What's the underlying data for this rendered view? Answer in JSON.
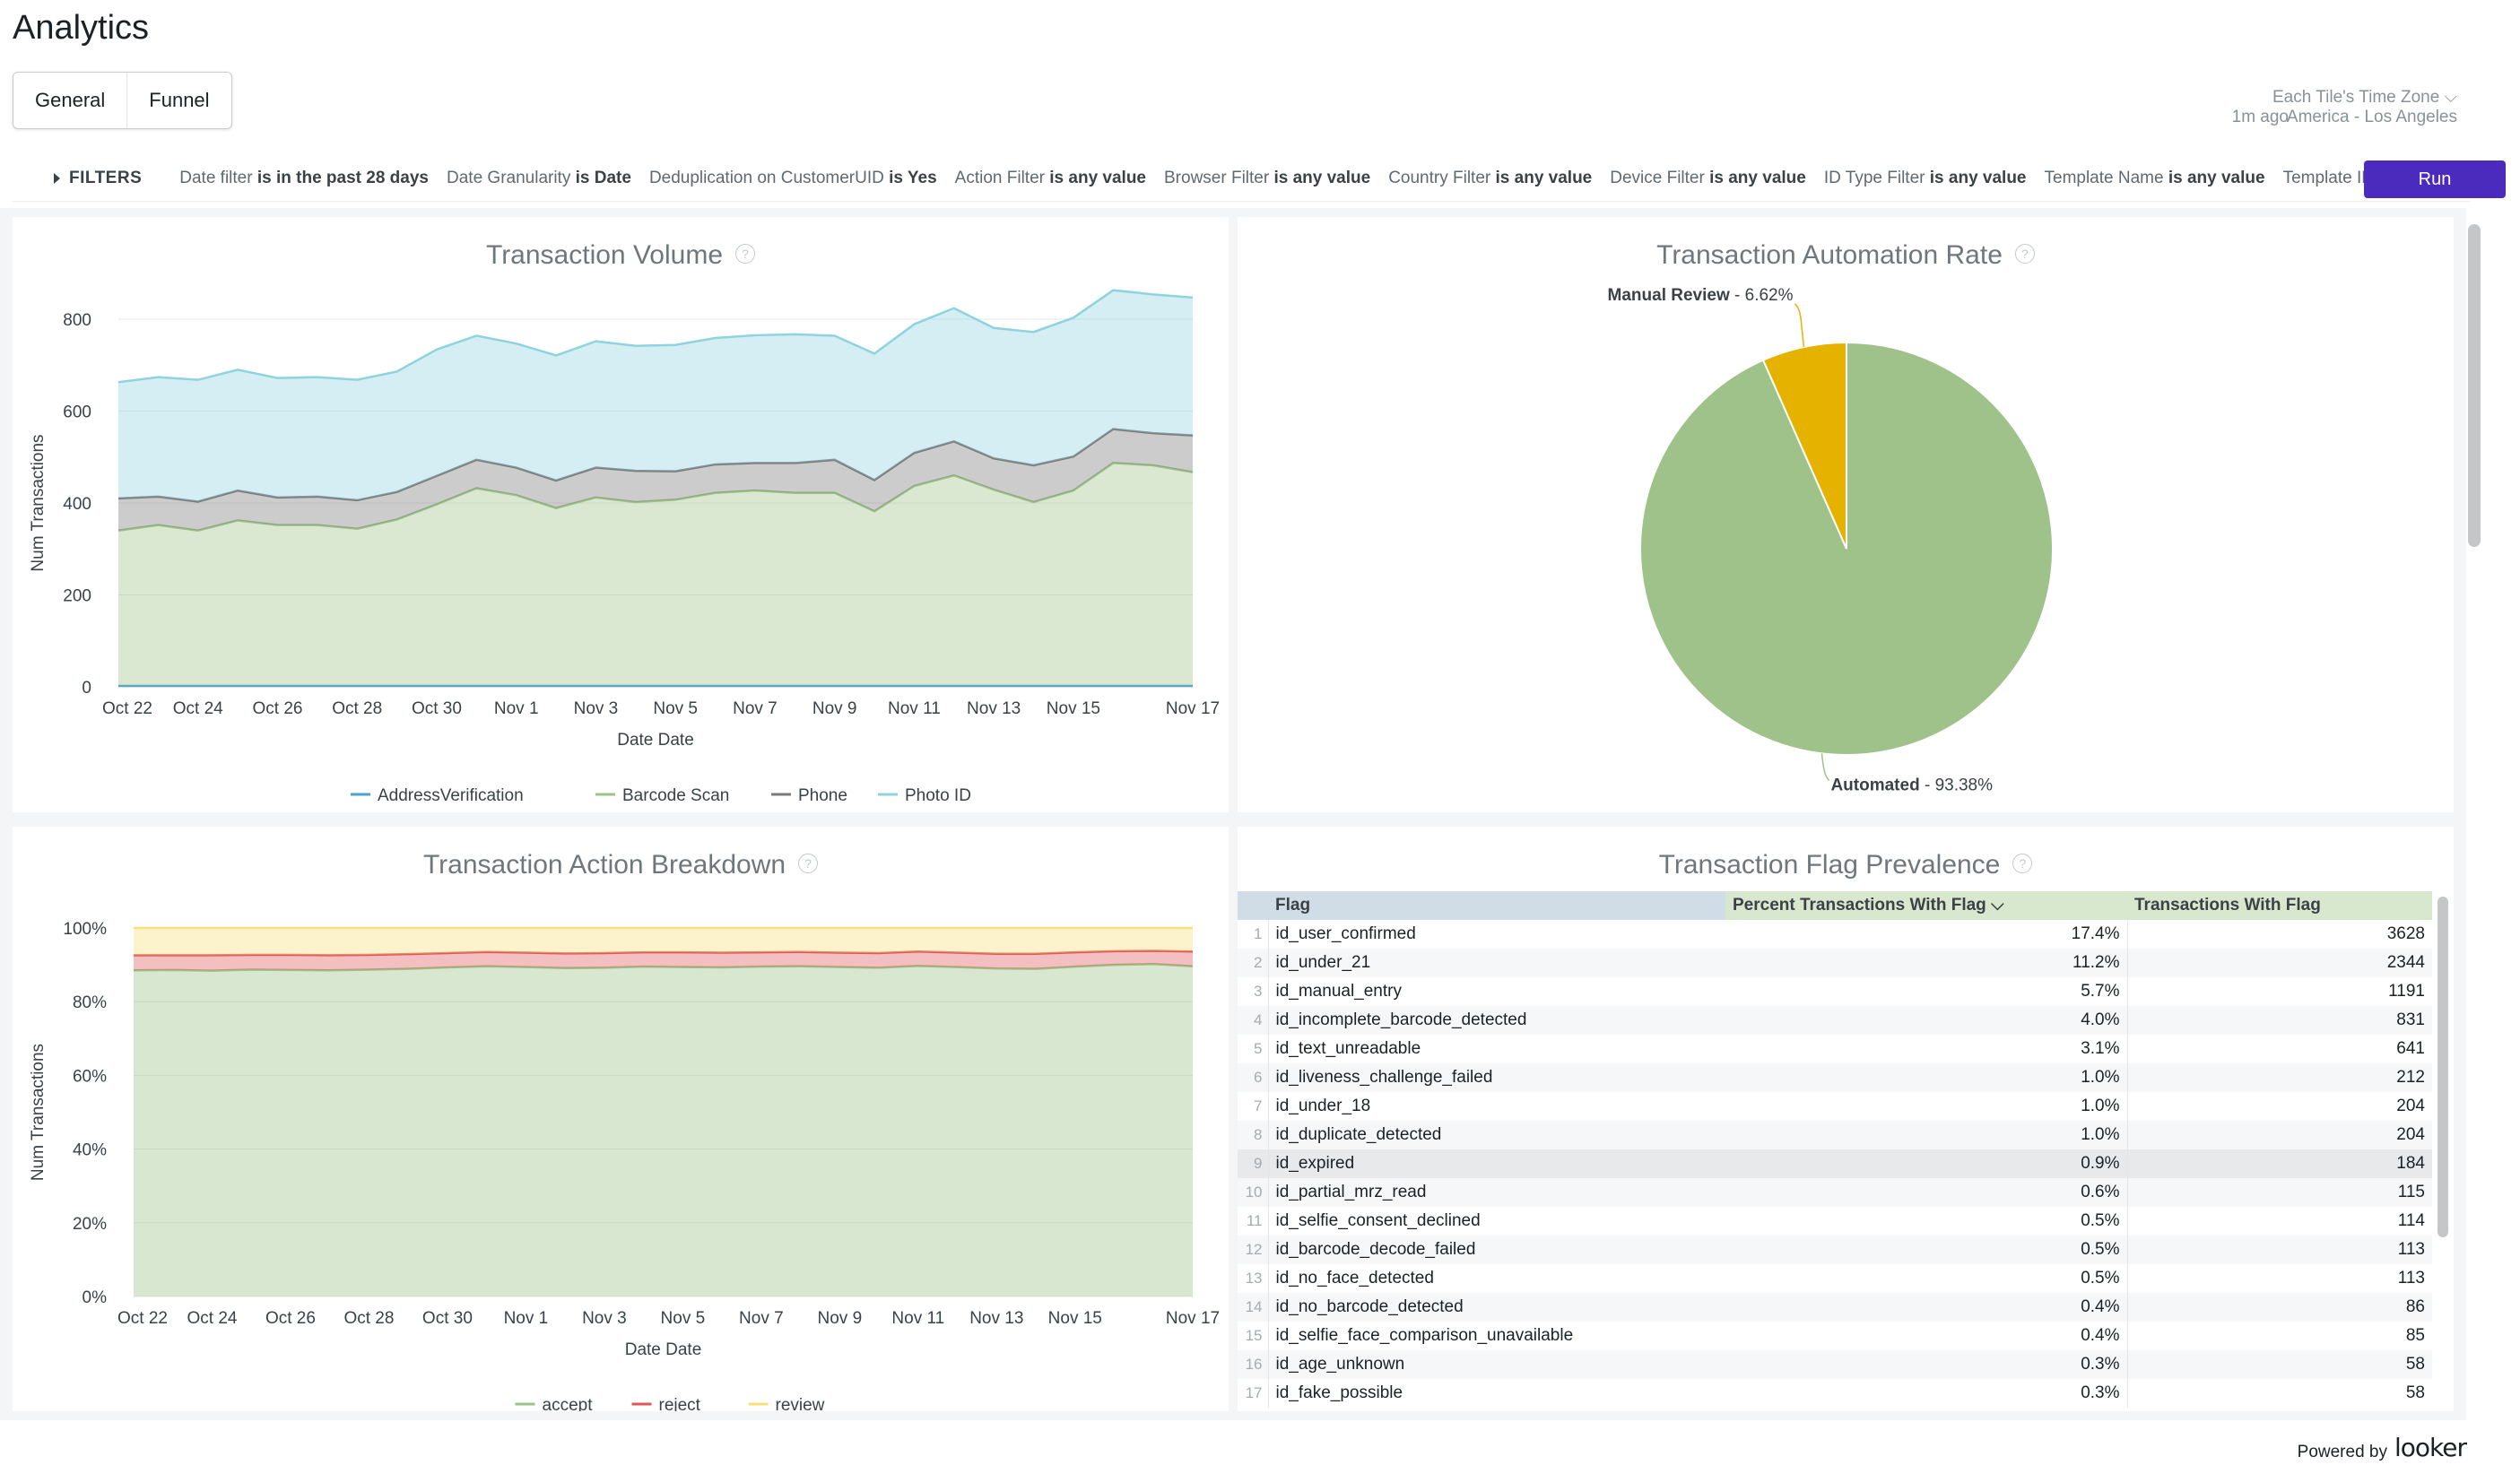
{
  "app": {
    "title": "Analytics"
  },
  "tabs": [
    {
      "label": "General"
    },
    {
      "label": "Funnel"
    }
  ],
  "timezone": {
    "label": "Each Tile's Time Zone",
    "value": "America - Los Angeles",
    "updated": "1m ago"
  },
  "filters": {
    "toggle": "FILTERS",
    "items": [
      {
        "name": "Date filter",
        "value": "is in the past 28 days"
      },
      {
        "name": "Date Granularity",
        "value": "is Date"
      },
      {
        "name": "Deduplication on CustomerUID",
        "value": "is Yes"
      },
      {
        "name": "Action Filter",
        "value": "is any value"
      },
      {
        "name": "Browser Filter",
        "value": "is any value"
      },
      {
        "name": "Country Filter",
        "value": "is any value"
      },
      {
        "name": "Device Filter",
        "value": "is any value"
      },
      {
        "name": "ID Type Filter",
        "value": "is any value"
      },
      {
        "name": "Template Name",
        "value": "is any value"
      },
      {
        "name": "Template ID",
        "value": ""
      }
    ],
    "run_label": "Run"
  },
  "colors": {
    "accent": "#4a2bbd",
    "green": "#9ec28a",
    "gold": "#e6b200",
    "teal": "#8fd3df",
    "gray": "#7a7a7a",
    "red": "#e15759",
    "yellow": "#f8e07a"
  },
  "tiles": {
    "volume": {
      "title": "Transaction Volume"
    },
    "automation": {
      "title": "Transaction Automation Rate"
    },
    "action": {
      "title": "Transaction Action Breakdown"
    },
    "flags": {
      "title": "Transaction Flag Prevalence"
    }
  },
  "chart_data": [
    {
      "type": "area",
      "title": "Transaction Volume",
      "xlabel": "Date Date",
      "ylabel": "Num Transactions",
      "ylim": [
        0,
        800
      ],
      "yticks": [
        "0",
        "200",
        "400",
        "600",
        "800"
      ],
      "xticks": [
        "Oct 22",
        "Oct 24",
        "Oct 26",
        "Oct 28",
        "Oct 30",
        "Nov 1",
        "Nov 3",
        "Nov 5",
        "Nov 7",
        "Nov 9",
        "Nov 11",
        "Nov 13",
        "Nov 15",
        "Nov 17"
      ],
      "stacked": true,
      "x_count": 28,
      "series": [
        {
          "name": "AddressVerification",
          "color": "#4ea0d0",
          "values": [
            2,
            2,
            2,
            2,
            2,
            2,
            2,
            2,
            2,
            2,
            2,
            2,
            2,
            2,
            2,
            2,
            2,
            2,
            2,
            2,
            2,
            2,
            2,
            2,
            2,
            2,
            2,
            2
          ]
        },
        {
          "name": "Barcode Scan",
          "color": "#9ec28a",
          "values": [
            338,
            350,
            338,
            360,
            350,
            350,
            342,
            362,
            395,
            430,
            415,
            387,
            410,
            400,
            405,
            420,
            425,
            420,
            420,
            380,
            435,
            458,
            427,
            400,
            425,
            485,
            480,
            465
          ]
        },
        {
          "name": "Phone",
          "color": "#7a7a7a",
          "values": [
            70,
            62,
            63,
            65,
            60,
            62,
            62,
            60,
            62,
            62,
            60,
            60,
            65,
            68,
            62,
            62,
            60,
            65,
            72,
            68,
            72,
            74,
            68,
            80,
            74,
            74,
            70,
            80
          ]
        },
        {
          "name": "Photo ID",
          "color": "#8fd3df",
          "values": [
            253,
            260,
            265,
            263,
            260,
            260,
            262,
            262,
            275,
            270,
            270,
            272,
            275,
            272,
            275,
            275,
            278,
            280,
            270,
            275,
            280,
            290,
            284,
            290,
            302,
            302,
            302,
            300
          ]
        }
      ],
      "legend": "bottom"
    },
    {
      "type": "pie",
      "title": "Transaction Automation Rate",
      "slices": [
        {
          "label": "Automated",
          "value": 93.38,
          "display": "93.38%",
          "color": "#9ec28a"
        },
        {
          "label": "Manual Review",
          "value": 6.62,
          "display": "6.62%",
          "color": "#e6b200"
        }
      ]
    },
    {
      "type": "area",
      "title": "Transaction Action Breakdown",
      "xlabel": "Date Date",
      "ylabel": "Num Transactions",
      "ylim": [
        0,
        100
      ],
      "yticks": [
        "0%",
        "20%",
        "40%",
        "60%",
        "80%",
        "100%"
      ],
      "xticks": [
        "Oct 22",
        "Oct 24",
        "Oct 26",
        "Oct 28",
        "Oct 30",
        "Nov 1",
        "Nov 3",
        "Nov 5",
        "Nov 7",
        "Nov 9",
        "Nov 11",
        "Nov 13",
        "Nov 15",
        "Nov 17"
      ],
      "stacked": true,
      "x_count": 28,
      "series": [
        {
          "name": "accept",
          "color": "#9ec28a",
          "values": [
            88.5,
            88.6,
            88.4,
            88.7,
            88.6,
            88.5,
            88.7,
            88.9,
            89.3,
            89.6,
            89.4,
            89.1,
            89.2,
            89.5,
            89.4,
            89.3,
            89.5,
            89.6,
            89.4,
            89.2,
            89.7,
            89.4,
            89.0,
            88.9,
            89.5,
            90.0,
            90.2,
            89.6
          ]
        },
        {
          "name": "reject",
          "color": "#e15759",
          "values": [
            4.1,
            4.0,
            4.2,
            4.0,
            4.1,
            4.1,
            4.0,
            4.0,
            3.9,
            3.9,
            3.9,
            4.0,
            4.0,
            3.9,
            4.0,
            4.0,
            3.9,
            3.9,
            3.9,
            4.0,
            3.9,
            3.9,
            4.0,
            4.1,
            3.9,
            3.7,
            3.6,
            4.0
          ]
        },
        {
          "name": "review",
          "color": "#f8e07a",
          "values": [
            7.4,
            7.4,
            7.4,
            7.3,
            7.3,
            7.4,
            7.3,
            7.1,
            6.8,
            6.5,
            6.7,
            6.9,
            6.8,
            6.6,
            6.6,
            6.7,
            6.6,
            6.5,
            6.7,
            6.8,
            6.4,
            6.7,
            7.0,
            7.0,
            6.6,
            6.3,
            6.2,
            6.4
          ]
        }
      ],
      "legend": "bottom"
    },
    {
      "type": "table",
      "title": "Transaction Flag Prevalence",
      "columns": [
        "Flag",
        "Percent Transactions With Flag",
        "Transactions With Flag"
      ],
      "rows": [
        [
          "id_user_confirmed",
          "17.4%",
          "3628"
        ],
        [
          "id_under_21",
          "11.2%",
          "2344"
        ],
        [
          "id_manual_entry",
          "5.7%",
          "1191"
        ],
        [
          "id_incomplete_barcode_detected",
          "4.0%",
          "831"
        ],
        [
          "id_text_unreadable",
          "3.1%",
          "641"
        ],
        [
          "id_liveness_challenge_failed",
          "1.0%",
          "212"
        ],
        [
          "id_under_18",
          "1.0%",
          "204"
        ],
        [
          "id_duplicate_detected",
          "1.0%",
          "204"
        ],
        [
          "id_expired",
          "0.9%",
          "184"
        ],
        [
          "id_partial_mrz_read",
          "0.6%",
          "115"
        ],
        [
          "id_selfie_consent_declined",
          "0.5%",
          "114"
        ],
        [
          "id_barcode_decode_failed",
          "0.5%",
          "113"
        ],
        [
          "id_no_face_detected",
          "0.5%",
          "113"
        ],
        [
          "id_no_barcode_detected",
          "0.4%",
          "86"
        ],
        [
          "id_selfie_face_comparison_unavailable",
          "0.4%",
          "85"
        ],
        [
          "id_age_unknown",
          "0.3%",
          "58"
        ],
        [
          "id_fake_possible",
          "0.3%",
          "58"
        ]
      ]
    }
  ],
  "footer": {
    "powered_by": "Powered by",
    "logo": "looker"
  }
}
